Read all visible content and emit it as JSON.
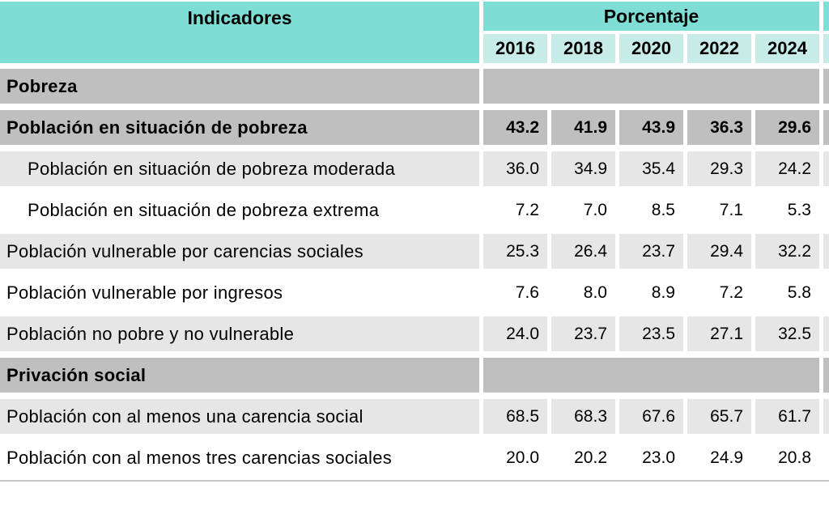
{
  "chart_data": {
    "type": "table",
    "header": {
      "indicators_label": "Indicadores",
      "group_label": "Porcentaje",
      "years": [
        "2016",
        "2018",
        "2020",
        "2022",
        "2024"
      ]
    },
    "rows": [
      {
        "label": "Pobreza",
        "kind": "section",
        "values": []
      },
      {
        "label": "Población en situación de pobreza",
        "kind": "total",
        "values": [
          "43.2",
          "41.9",
          "43.9",
          "36.3",
          "29.6"
        ]
      },
      {
        "label": "Población en situación de pobreza moderada",
        "kind": "sub",
        "values": [
          "36.0",
          "34.9",
          "35.4",
          "29.3",
          "24.2"
        ]
      },
      {
        "label": "Población en situación de pobreza extrema",
        "kind": "sub",
        "values": [
          "7.2",
          "7.0",
          "8.5",
          "7.1",
          "5.3"
        ]
      },
      {
        "label": "Población vulnerable por carencias sociales",
        "kind": "item",
        "values": [
          "25.3",
          "26.4",
          "23.7",
          "29.4",
          "32.2"
        ]
      },
      {
        "label": "Población vulnerable por ingresos",
        "kind": "item",
        "values": [
          "7.6",
          "8.0",
          "8.9",
          "7.2",
          "5.8"
        ]
      },
      {
        "label": "Población no pobre y no vulnerable",
        "kind": "item",
        "values": [
          "24.0",
          "23.7",
          "23.5",
          "27.1",
          "32.5"
        ]
      },
      {
        "label": "Privación social",
        "kind": "section",
        "values": []
      },
      {
        "label": "Población con al menos una carencia social",
        "kind": "item",
        "values": [
          "68.5",
          "68.3",
          "67.6",
          "65.7",
          "61.7"
        ]
      },
      {
        "label": "Población con al menos tres carencias sociales",
        "kind": "item",
        "values": [
          "20.0",
          "20.2",
          "23.0",
          "24.9",
          "20.8"
        ]
      }
    ],
    "colors": {
      "group_header_teal": "#7EDDD4",
      "year_header_teal": "#C7ECE8",
      "section_row_gray": "#BFBFBF",
      "alt_row_gray": "#E6E6E6",
      "row_white": "#FFFFFF",
      "bottom_border_gray": "#C6C6C6"
    }
  }
}
